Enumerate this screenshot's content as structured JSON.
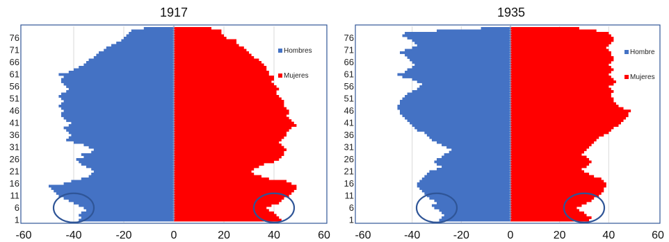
{
  "colors": {
    "male": "#4472C4",
    "female": "#FF0000",
    "grid": "#d9d9d9",
    "frame": "#2F5597",
    "circle": "#2F5597"
  },
  "chart_data": [
    {
      "type": "bar",
      "orientation": "horizontal",
      "title": "1917",
      "age_labels": [
        "1",
        "6",
        "11",
        "16",
        "21",
        "26",
        "31",
        "36",
        "41",
        "46",
        "51",
        "56",
        "61",
        "66",
        "71",
        "76"
      ],
      "xlim": [
        -60,
        60
      ],
      "xticks": [
        "-60",
        "-40",
        "-20",
        "0",
        "20",
        "40",
        "60"
      ],
      "grid": true,
      "legend_position": "right",
      "series": [
        {
          "name": "Hombres",
          "color": "#4472C4",
          "side": "negative",
          "values": [
            38,
            37,
            38,
            37,
            35,
            36,
            38,
            40,
            42,
            44,
            46,
            47,
            48,
            49,
            50,
            44,
            41,
            37,
            34,
            33,
            32,
            33,
            35,
            37,
            38,
            39,
            36,
            37,
            33,
            32,
            34,
            36,
            40,
            43,
            42,
            41,
            42,
            43,
            44,
            42,
            41,
            43,
            44,
            45,
            45,
            44,
            45,
            46,
            45,
            44,
            45,
            46,
            45,
            43,
            42,
            43,
            44,
            45,
            45,
            44,
            46,
            42,
            40,
            38,
            36,
            35,
            34,
            32,
            31,
            30,
            28,
            27,
            25,
            23,
            21,
            20,
            19,
            18,
            17,
            12
          ]
        },
        {
          "name": "Mujeres",
          "color": "#FF0000",
          "side": "positive",
          "values": [
            43,
            42,
            41,
            40,
            38,
            37,
            39,
            42,
            43,
            44,
            46,
            47,
            48,
            49,
            49,
            47,
            45,
            38,
            35,
            32,
            31,
            32,
            34,
            36,
            40,
            42,
            43,
            44,
            44,
            45,
            44,
            43,
            42,
            43,
            44,
            45,
            45,
            46,
            47,
            49,
            48,
            47,
            46,
            45,
            46,
            46,
            45,
            44,
            44,
            44,
            43,
            42,
            41,
            41,
            42,
            41,
            40,
            39,
            40,
            40,
            38,
            38,
            37,
            37,
            36,
            35,
            34,
            32,
            31,
            30,
            29,
            28,
            26,
            25,
            25,
            21,
            20,
            19,
            19,
            15
          ]
        }
      ],
      "legend": [
        "Hombres",
        "Mujeres"
      ],
      "annotations": [
        {
          "shape": "ellipse",
          "x": -40,
          "age": 6
        },
        {
          "shape": "ellipse",
          "x": 40,
          "age": 6
        }
      ]
    },
    {
      "type": "bar",
      "orientation": "horizontal",
      "title": "1935",
      "age_labels": [
        "1",
        "6",
        "11",
        "16",
        "21",
        "26",
        "31",
        "36",
        "41",
        "46",
        "51",
        "56",
        "61",
        "66",
        "71",
        "76"
      ],
      "xlim": [
        -60,
        60
      ],
      "xticks": [
        "-60",
        "-40",
        "-20",
        "0",
        "20",
        "40",
        "60"
      ],
      "grid": true,
      "legend_position": "right",
      "series": [
        {
          "name": "Hombre",
          "color": "#4472C4",
          "side": "negative",
          "values": [
            29,
            28,
            27,
            28,
            29,
            31,
            32,
            30,
            31,
            33,
            34,
            35,
            36,
            37,
            38,
            38,
            37,
            36,
            35,
            34,
            33,
            30,
            28,
            30,
            31,
            30,
            28,
            27,
            25,
            24,
            26,
            28,
            30,
            32,
            33,
            34,
            35,
            38,
            39,
            40,
            41,
            42,
            43,
            44,
            45,
            45,
            46,
            46,
            45,
            45,
            44,
            43,
            42,
            40,
            38,
            37,
            36,
            38,
            40,
            44,
            46,
            43,
            42,
            40,
            39,
            40,
            41,
            42,
            43,
            45,
            43,
            40,
            38,
            39,
            40,
            42,
            44,
            43,
            30,
            12
          ]
        },
        {
          "name": "Mujeres",
          "color": "#FF0000",
          "side": "positive",
          "values": [
            32,
            33,
            31,
            30,
            28,
            27,
            29,
            31,
            33,
            34,
            36,
            37,
            38,
            38,
            39,
            39,
            38,
            37,
            34,
            32,
            30,
            29,
            31,
            32,
            33,
            32,
            31,
            29,
            30,
            31,
            32,
            33,
            34,
            35,
            36,
            38,
            40,
            41,
            42,
            44,
            45,
            46,
            47,
            48,
            48,
            49,
            46,
            44,
            43,
            42,
            42,
            41,
            41,
            42,
            41,
            40,
            42,
            43,
            42,
            41,
            40,
            41,
            42,
            41,
            40,
            41,
            42,
            42,
            41,
            41,
            40,
            39,
            40,
            41,
            42,
            42,
            41,
            40,
            35,
            28
          ]
        }
      ],
      "legend": [
        "Hombre",
        "Mujeres"
      ],
      "annotations": [
        {
          "shape": "ellipse",
          "x": -30,
          "age": 6
        },
        {
          "shape": "ellipse",
          "x": 30,
          "age": 6
        }
      ]
    }
  ]
}
